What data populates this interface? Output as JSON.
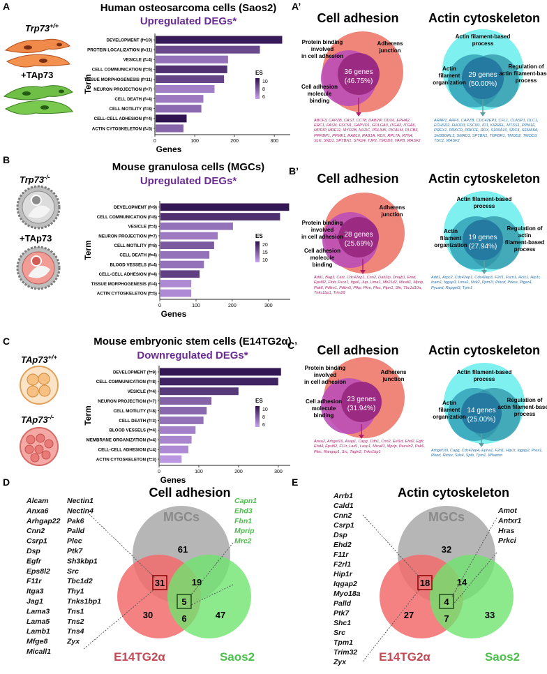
{
  "panelA": {
    "letter": "A",
    "title": "Human osteosarcoma cells (Saos2)",
    "subtitle": "Upregulated DEGs*",
    "cell_label_1": "Trp73",
    "cell_label_1_sup": "+/+",
    "cell_label_2": "+TAp73",
    "chart_data": {
      "type": "bar",
      "ylabel": "Term",
      "xlabel": "Genes",
      "xlim": [
        0,
        340
      ],
      "xticks": [
        0,
        100,
        200,
        300
      ],
      "legend_title": "ES",
      "legend_ticks": [
        10,
        8,
        6
      ],
      "es_range": [
        5,
        11
      ],
      "categories": [
        "DEVELOPMENT (f=10)",
        "PROTEIN LOCALIZATION (f=11)",
        "VESICLE (f=4)",
        "CELL COMMUNICATION (f=6)",
        "TISSUE MORPHOGENESIS (f=11)",
        "NEURON PROJECTION (f=7)",
        "CELL DEATH (f=4)",
        "CELL MOTILITY (f=8)",
        "CELL-CELL ADHESION (f=4)",
        "ACTIN CYTOSKELETON (f=5)"
      ],
      "values": [
        318,
        262,
        182,
        180,
        172,
        148,
        120,
        115,
        78,
        70
      ],
      "es": [
        10.5,
        8.6,
        7.0,
        9.6,
        8.8,
        6.5,
        6.7,
        7.3,
        10.8,
        7.5
      ]
    }
  },
  "panelB": {
    "letter": "B",
    "title": "Mouse granulosa cells (MGCs)",
    "subtitle": "Upregulated DEGs*",
    "cell_label_1": "Trp73",
    "cell_label_1_sup": "-/-",
    "cell_label_2": "+TAp73",
    "chart_data": {
      "type": "bar",
      "ylabel": "Term",
      "xlabel": "Genes",
      "xlim": [
        0,
        360
      ],
      "xticks": [
        0,
        100,
        200,
        300
      ],
      "legend_title": "ES",
      "legend_ticks": [
        20,
        15,
        10
      ],
      "es_range": [
        6,
        24
      ],
      "categories": [
        "DEVELOPMENT (f=9)",
        "CELL COMMUNICATION (f=8)",
        "VESICLE (f=4)",
        "NEURON PROJECTION (f=7)",
        "CELL MOTILITY (f=8)",
        "CELL DEATH (f=4)",
        "BLOOD VESSELS (f=4)",
        "CELL-CELL ADHESION (f=4)",
        "TISSUE MORPHOGENESIS (f=4)",
        "ACTIN CYTOSKELETON (f=5)"
      ],
      "values": [
        355,
        330,
        200,
        158,
        148,
        135,
        120,
        108,
        85,
        85
      ],
      "es": [
        23,
        20,
        12,
        11,
        15,
        12,
        12,
        18,
        9,
        9
      ]
    }
  },
  "panelC": {
    "letter": "C",
    "title": "Mouse embryonic stem cells (E14TG2α)",
    "subtitle": "Downregulated DEGs*",
    "cell_label_1": "TAp73",
    "cell_label_1_sup": "+/+",
    "cell_label_2": "TAp73",
    "cell_label_2_sup": "-/-",
    "chart_data": {
      "type": "bar",
      "ylabel": "Term",
      "xlabel": "Genes",
      "xlim": [
        0,
        330
      ],
      "xticks": [
        0,
        100,
        200,
        300
      ],
      "legend_title": "ES",
      "legend_ticks": [
        10,
        8,
        6
      ],
      "es_range": [
        5,
        11
      ],
      "categories": [
        "DEVELOPMENT (f=9)",
        "CELL COMMUNICATION (f=8)",
        "VESICLE (f=4)",
        "NEURON PROJECTION (f=7)",
        "CELL MOTILITY (f=8)",
        "CELL DEATH (f=3)",
        "BLOOD VESSELS (f=4)",
        "MEMBRANE ORGANIZATION (f=4)",
        "CELL-CELL ADHESION (f=4)",
        "ACTIN CYTOSKELETON (f=3)"
      ],
      "values": [
        305,
        298,
        198,
        130,
        118,
        110,
        90,
        80,
        72,
        55
      ],
      "es": [
        10.7,
        10.2,
        9.3,
        7.6,
        7.4,
        7.0,
        6.4,
        6.2,
        6.0,
        5.5
      ]
    }
  },
  "panelA2": {
    "letter": "A’",
    "adhesion": {
      "title": "Cell adhesion",
      "outer_label": "Adherens junction",
      "left_label": "Protein binding involved in cell adhesion",
      "lower_label": "Cell adhesion molecule binding",
      "center_count": "36 genes",
      "center_pct": "(46.75%)",
      "genes": "ABCF3, CAPZB, CAST, CCT8, DAB2IP, DDX6, EPHA2, ERC1, FASN, FSCN1, GAPVD1, GOLGA3, ITGA2, ITGA6, MPRIP, MRE11, MYO1B, NUDC, PDLIM5, PICALM, PLCB3, PPFIBP1, PPME1, RAB10, RAB1A, RDX, RPL7A, RTN4, SLK, SND1, SPTBN1, STK24, TJP2, TMOD3, VAPB, WASF2"
    },
    "actin": {
      "title": "Actin cytoskeleton",
      "top_label": "Actin filament-based process",
      "left_label": "Actin filament organization",
      "right_label": "Regulation of actin filament-based process",
      "center_count": "29 genes",
      "center_pct": "(50.00%)",
      "genes": "ARAP1, ARF6, CAPZB, CDC42EP3, CFL1, CLASP1, DLC1, FCHSD2, FHOD3, FSCN1, ID1, KIRREL, MTSS1, PPM1F, PREX1, PRKCD, PRKCE, RDX, S100A10, SDC4, SEMA5A, SH3BGRL3, SMAD3, SPTBN1, TGFBR1, TMOD2, TMOD3, TSC1, WASF2"
    }
  },
  "panelB2": {
    "letter": "B’",
    "adhesion": {
      "title": "Cell adhesion",
      "outer_label": "Adherens junction",
      "left_label": "Protein binding involved in cell adhesion",
      "lower_label": "Cell adhesion molecule binding",
      "center_count": "28 genes",
      "center_pct": "(25.69%)",
      "genes": "Add1, Bag3, Cast, Cdc42ep1, Cnn2, Dab2ip, Dnajb1, Emd, Eps8l2, Flnb, Fscn1, Itga6, Jup, Lima1, Mb21d2, Micall1, Mprip, Pak6, Pdlim1, Pdlim5, Pfkp, Pkm, Plec, Ptpn1, Sfn, Tbc1d10a, Tnks1bp1, Trim29"
    },
    "actin": {
      "title": "Actin cytoskeleton",
      "top_label": "Actin filament-based process",
      "left_label": "Actin filament organization",
      "right_label": "Regulation of actin filament-based process",
      "center_count": "19 genes",
      "center_pct": "(27.94%)",
      "genes": "Add1, Arpc2, Cdc42ep1, Cdc42ep3, F2rl1, Fscn1, Hcls1, Hip1r, Icam1, Iqgap3, Lima1, Nck2, Ppm1f, Prkcd, Prkce, Ptger4, Pycard, Rapgef3, Tpm1"
    }
  },
  "panelC2": {
    "letter": "C’",
    "adhesion": {
      "title": "Cell adhesion",
      "outer_label": "Adherens junction",
      "left_label": "Protein binding involved in cell adhesion",
      "lower_label": "Cell adhesion molecule binding",
      "center_count": "23 genes",
      "center_pct": "(31.94%)",
      "genes": "Anxa2, Arhgef16, Asap1, Capg, Cdh1, Cnn2, Eef1d, Ehd2, Egfr, Ehd4, Eps8l2, F11r, Lad1, Lasp1, Micall1, Mprip, Pacsin2, Pak6, Plec, Rangap1, Src, Tagln2, Tnks1bp1"
    },
    "actin": {
      "title": "Actin cytoskeleton",
      "top_label": "Actin filament-based process",
      "left_label": "Actin filament organization",
      "right_label": "Regulation of actin filament-based process",
      "center_count": "14 genes",
      "center_pct": "(25.00%)",
      "genes": "Arhgef10l, Capg, Cdc42ep4, Epha1, F2rl1, Hip1r, Iqgap2, Prex1, Rhod, Rictor, Sdc4, Spib, Tpm1, Whamm"
    }
  },
  "panelD": {
    "letter": "D",
    "title": "Cell adhesion",
    "sets": {
      "top": "MGCs",
      "left": "E14TG2α",
      "right": "Saos2"
    },
    "counts": {
      "top_only": "61",
      "left_only": "30",
      "right_only": "47",
      "top_left": "31",
      "top_right": "19",
      "left_right": "6",
      "center": "5"
    },
    "genes_col1": [
      "Alcam",
      "Anxa6",
      "Arhgap22",
      "Cnn2",
      "Csrp1",
      "Dsp",
      "Egfr",
      "Eps8l2",
      "F11r",
      "Itga3",
      "Jag1",
      "Lama3",
      "Lama5",
      "Lamb1",
      "Mfge8",
      "Micall1"
    ],
    "genes_col2": [
      "Nectin1",
      "Nectin4",
      "Pak6",
      "Palld",
      "Plec",
      "Ptk7",
      "Sh3kbp1",
      "Src",
      "Tbc1d2",
      "Thy1",
      "Tnks1bp1",
      "Tns1",
      "Tns2",
      "Tns4",
      "Zyx"
    ],
    "genes_center": [
      "Capn1",
      "Ehd3",
      "Fbn1",
      "Mprip",
      "Mrc2"
    ]
  },
  "panelE": {
    "letter": "E",
    "title": "Actin cytoskeleton",
    "sets": {
      "top": "MGCs",
      "left": "E14TG2α",
      "right": "Saos2"
    },
    "counts": {
      "top_only": "32",
      "left_only": "27",
      "right_only": "33",
      "top_left": "18",
      "top_right": "14",
      "left_right": "7",
      "center": "4"
    },
    "genes_col1": [
      "Arrb1",
      "Cald1",
      "Cnn2",
      "Csrp1",
      "Dsp",
      "Ehd2",
      "F11r",
      "F2rl1",
      "Hip1r",
      "Iqgap2",
      "Myo18a",
      "Palld",
      "Ptk7",
      "Shc1",
      "Src",
      "Tpm1",
      "Trim32",
      "Zyx"
    ],
    "genes_center": [
      "Amot",
      "Antxr1",
      "Hras",
      "Prkci"
    ]
  },
  "colors": {
    "purple_dark": "#2b0f4c",
    "purple_light": "#c9a3ef",
    "subtitle": "#6a2c91",
    "adhesion_outer": "#f0857a",
    "adhesion_inner": "#bb4fb7",
    "adhesion_center": "#9b2a82",
    "adhesion_genes": "#b01f6a",
    "actin_outer": "#7ef0f0",
    "actin_mid": "#3aa6bb",
    "actin_center": "#247aa0",
    "actin_genes": "#2a72b0",
    "venn_gray": "#a9a9a9",
    "venn_red": "#f26c6c",
    "venn_green": "#6fe36f",
    "green_text": "#4bbf4b",
    "red_text": "#c04a55"
  }
}
